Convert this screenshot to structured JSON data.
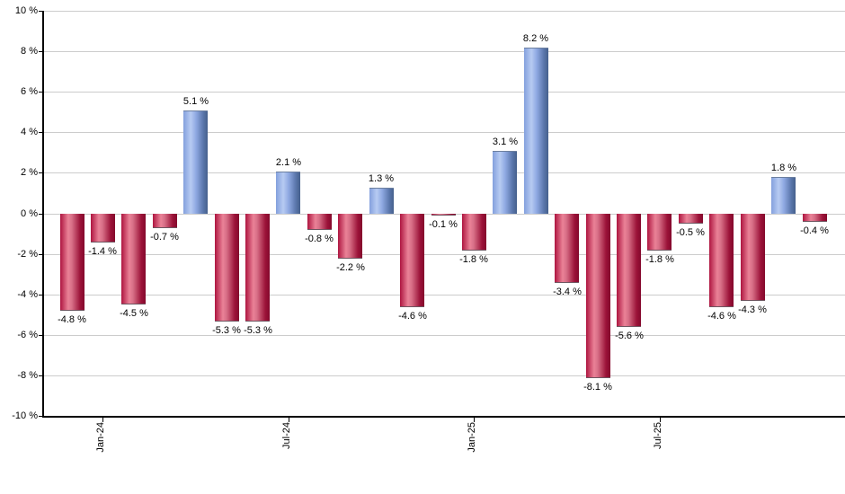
{
  "chart_data": {
    "type": "bar",
    "title": "",
    "xlabel": "",
    "ylabel": "",
    "ylim": [
      -10,
      10
    ],
    "y_tick_step": 2,
    "grid": true,
    "legend": null,
    "y_tick_labels": [
      "10 %",
      "8 %",
      "6 %",
      "4 %",
      "2 %",
      "0 %",
      "-2 %",
      "-4 %",
      "-6 %",
      "-8 %",
      "-10 %"
    ],
    "x_ticks": [
      {
        "label": "Jan-24",
        "bar_index": 1
      },
      {
        "label": "Jul-24",
        "bar_index": 7
      },
      {
        "label": "Jan-25",
        "bar_index": 13
      },
      {
        "label": "Jul-25",
        "bar_index": 19
      }
    ],
    "values": [
      -4.8,
      -1.4,
      -4.5,
      -0.7,
      5.1,
      -5.3,
      -5.3,
      2.1,
      -0.8,
      -2.2,
      1.3,
      -4.6,
      -0.1,
      -1.8,
      3.1,
      8.2,
      -3.4,
      -8.1,
      -5.6,
      -1.8,
      -0.5,
      -4.6,
      -4.3,
      1.8,
      -0.4
    ],
    "bar_labels": [
      "-4.8 %",
      "-1.4 %",
      "-4.5 %",
      "-0.7 %",
      "5.1 %",
      "-5.3 %",
      "-5.3 %",
      "2.1 %",
      "-0.8 %",
      "-2.2 %",
      "1.3 %",
      "-4.6 %",
      "-0.1 %",
      "-1.8 %",
      "3.1 %",
      "8.2 %",
      "-3.4 %",
      "-8.1 %",
      "-5.6 %",
      "-1.8 %",
      "-0.5 %",
      "-4.6 %",
      "-4.3 %",
      "1.8 %",
      "-0.4 %"
    ],
    "colors": {
      "positive_base": "#7d9ce0",
      "negative_base": "#c32753",
      "positive_gradient": [
        {
          "color": "#83a0dd",
          "stop": 0
        },
        {
          "color": "#b7cbf2",
          "stop": 30
        },
        {
          "color": "#8fa9e2",
          "stop": 52
        },
        {
          "color": "#5a76ab",
          "stop": 82
        },
        {
          "color": "#45608c",
          "stop": 100
        }
      ],
      "negative_gradient": [
        {
          "color": "#ae1540",
          "stop": 0
        },
        {
          "color": "#ea8297",
          "stop": 33
        },
        {
          "color": "#d86f87",
          "stop": 48
        },
        {
          "color": "#9c1339",
          "stop": 82
        },
        {
          "color": "#84082c",
          "stop": 100
        }
      ],
      "gridline": "#cccccc",
      "axis": "#000000",
      "label_text": "#000000"
    }
  }
}
